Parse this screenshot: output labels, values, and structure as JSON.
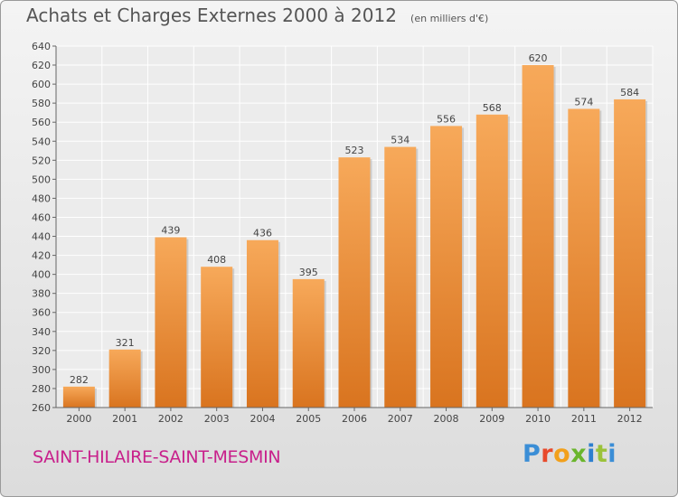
{
  "header": {
    "title": "Achats et Charges Externes 2000 à 2012",
    "units": "(en milliers d'€)"
  },
  "footer": {
    "commune": "SAINT-HILAIRE-SAINT-MESMIN",
    "brand": "Proxiti"
  },
  "colors": {
    "bar_light": "#f7a95a",
    "bar_dark": "#d9741f",
    "commune_text": "#c8208b"
  },
  "chart_data": {
    "type": "bar",
    "title": "Achats et Charges Externes 2000 à 2012",
    "subtitle": "(en milliers d'€)",
    "xlabel": "",
    "ylabel": "",
    "categories": [
      "2000",
      "2001",
      "2002",
      "2003",
      "2004",
      "2005",
      "2006",
      "2007",
      "2008",
      "2009",
      "2010",
      "2011",
      "2012"
    ],
    "values": [
      282,
      321,
      439,
      408,
      436,
      395,
      523,
      534,
      556,
      568,
      620,
      574,
      584
    ],
    "ylim": [
      260,
      640
    ],
    "yticks": [
      260,
      280,
      300,
      320,
      340,
      360,
      380,
      400,
      420,
      440,
      460,
      480,
      500,
      520,
      540,
      560,
      580,
      600,
      620,
      640
    ],
    "grid": true,
    "legend": "none"
  }
}
